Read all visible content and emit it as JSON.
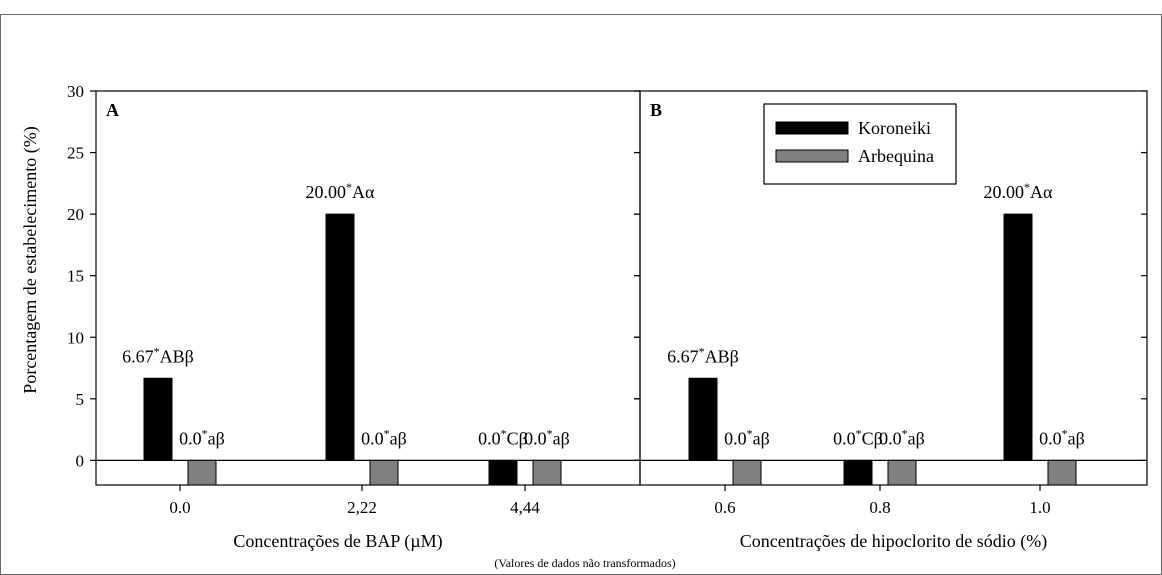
{
  "y_axis_label": "Porcentagem de estabelecimento (%)",
  "footnote": "(Valores de dados não transformados)",
  "legend": {
    "entries": [
      {
        "name": "Koroneiki",
        "color": "#000000"
      },
      {
        "name": "Arbequina",
        "color": "#808080"
      }
    ]
  },
  "chart_data": [
    {
      "type": "bar",
      "panel_label": "A",
      "xlabel": "Concentrações de BAP (µM)",
      "ylabel": "Porcentagem de estabelecimento (%)",
      "ylim": [
        -2,
        30
      ],
      "yticks": [
        0,
        5,
        10,
        15,
        20,
        25,
        30
      ],
      "categories": [
        "0.0",
        "2,22",
        "4,44"
      ],
      "series": [
        {
          "name": "Koroneiki",
          "color": "#000000",
          "values": [
            6.67,
            20.0,
            0.0
          ],
          "labels": [
            {
              "main": "6.67",
              "star": "*",
              "suffix": "ABβ"
            },
            {
              "main": "20.00",
              "star": "*",
              "suffix": "Aα"
            },
            {
              "main": "0.0",
              "star": "*",
              "suffix": "Cβ"
            }
          ]
        },
        {
          "name": "Arbequina",
          "color": "#808080",
          "values": [
            0.0,
            0.0,
            0.0
          ],
          "labels": [
            {
              "main": "0.0",
              "star": "*",
              "suffix": "aβ"
            },
            {
              "main": "0.0",
              "star": "*",
              "suffix": "aβ"
            },
            {
              "main": "0.0",
              "star": "*",
              "suffix": "aβ"
            }
          ]
        }
      ],
      "grid": false
    },
    {
      "type": "bar",
      "panel_label": "B",
      "xlabel": "Concentrações de hipoclorito de sódio (%)",
      "ylim": [
        -2,
        30
      ],
      "yticks": [
        0,
        5,
        10,
        15,
        20,
        25,
        30
      ],
      "categories": [
        "0.6",
        "0.8",
        "1.0"
      ],
      "series": [
        {
          "name": "Koroneiki",
          "color": "#000000",
          "values": [
            6.67,
            0.0,
            20.0
          ],
          "labels": [
            {
              "main": "6.67",
              "star": "*",
              "suffix": "ABβ"
            },
            {
              "main": "0.0",
              "star": "*",
              "suffix": "Cβ"
            },
            {
              "main": "20.00",
              "star": "*",
              "suffix": "Aα"
            }
          ]
        },
        {
          "name": "Arbequina",
          "color": "#808080",
          "values": [
            0.0,
            0.0,
            0.0
          ],
          "labels": [
            {
              "main": "0.0",
              "star": "*",
              "suffix": "aβ"
            },
            {
              "main": "0.0",
              "star": "*",
              "suffix": "aβ"
            },
            {
              "main": "0.0",
              "star": "*",
              "suffix": "aβ"
            }
          ]
        }
      ],
      "legend_position": "top-right",
      "grid": false
    }
  ]
}
